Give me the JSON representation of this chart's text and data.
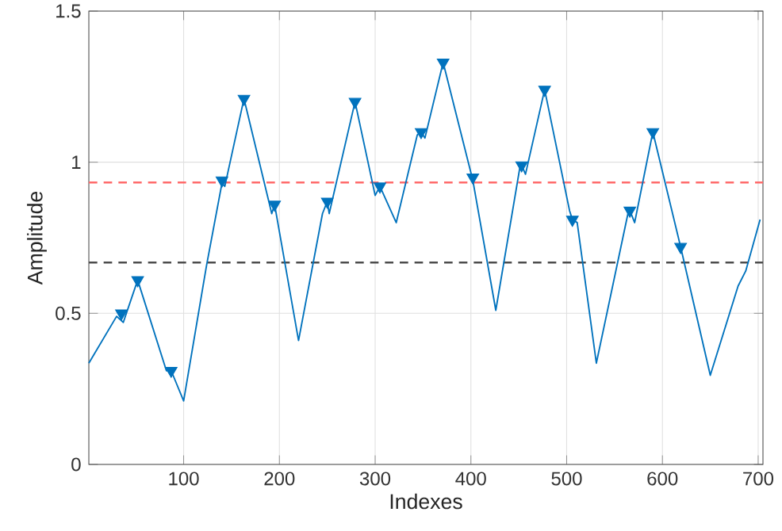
{
  "chart_data": {
    "type": "line",
    "xlabel": "Indexes",
    "ylabel": "Amplitude",
    "xlim": [
      1,
      705
    ],
    "ylim": [
      0,
      1.5
    ],
    "xticks": [
      100,
      200,
      300,
      400,
      500,
      600,
      700
    ],
    "yticks": [
      0,
      0.5,
      1,
      1.5
    ],
    "grid": true,
    "series": [
      {
        "color": "#0072bd",
        "line_style": "solid",
        "marker": "none",
        "x": [
          1,
          30,
          37,
          52,
          82,
          87,
          100,
          124,
          140,
          143,
          163,
          192,
          195,
          220,
          245,
          250,
          252,
          279,
          300,
          305,
          322,
          344,
          348,
          352,
          371,
          402,
          426,
          451,
          453,
          457,
          477,
          503,
          506,
          511,
          531,
          564,
          566,
          571,
          590,
          619,
          650,
          679,
          687,
          702
        ],
        "values": [
          0.335,
          0.49,
          0.47,
          0.61,
          0.31,
          0.31,
          0.21,
          0.66,
          0.93,
          0.92,
          1.21,
          0.83,
          0.86,
          0.41,
          0.83,
          0.87,
          0.83,
          1.2,
          0.89,
          0.92,
          0.8,
          1.09,
          1.1,
          1.08,
          1.33,
          0.94,
          0.51,
          0.98,
          0.99,
          0.96,
          1.24,
          0.84,
          0.81,
          0.8,
          0.335,
          0.83,
          0.84,
          0.8,
          1.1,
          0.72,
          0.295,
          0.59,
          0.64,
          0.81
        ]
      },
      {
        "type": "scatter",
        "color": "#0072bd",
        "marker": "triangle",
        "x": [
          35,
          52,
          87,
          140,
          163,
          195,
          250,
          279,
          305,
          348,
          371,
          402,
          453,
          477,
          506,
          566,
          590,
          619
        ],
        "values": [
          0.5,
          0.61,
          0.31,
          0.94,
          1.21,
          0.86,
          0.87,
          1.2,
          0.92,
          1.1,
          1.33,
          0.95,
          0.99,
          1.24,
          0.81,
          0.84,
          1.1,
          0.72
        ]
      }
    ],
    "ref_lines": [
      {
        "axis": "y",
        "value": 0.933,
        "color": "#ff6b6b",
        "line_style": "dashed"
      },
      {
        "axis": "y",
        "value": 0.668,
        "color": "#4d4d4d",
        "line_style": "dashed"
      }
    ]
  }
}
